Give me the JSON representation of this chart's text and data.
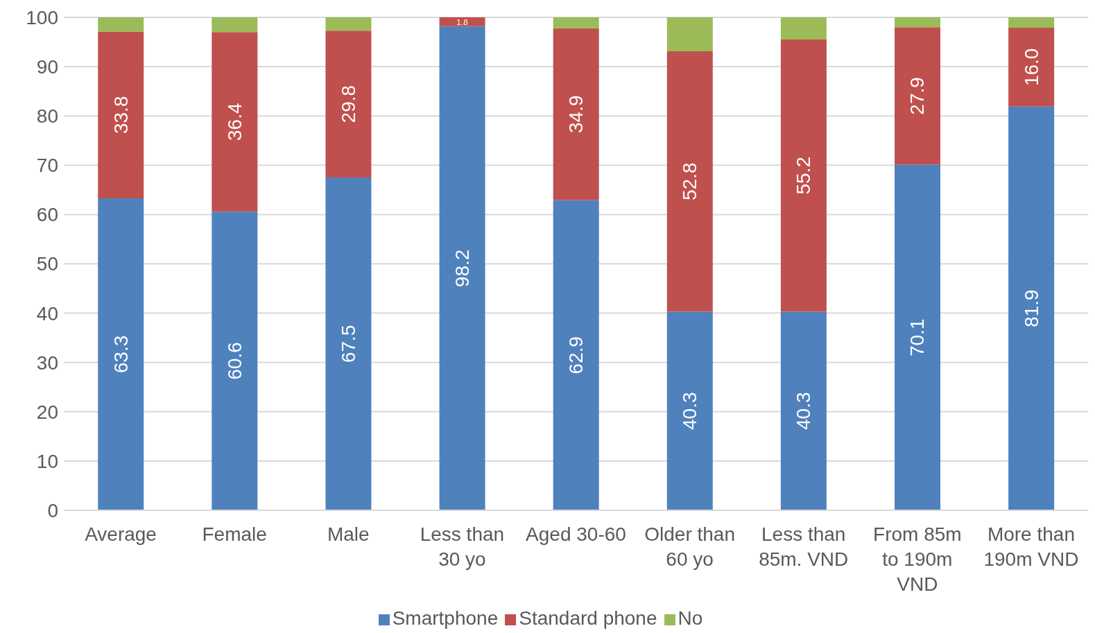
{
  "chart_data": {
    "type": "bar",
    "stacked": true,
    "categories": [
      "Average",
      "Female",
      "Male",
      "Less than 30 yo",
      "Aged 30-60",
      "Older than 60 yo",
      "Less than 85m. VND",
      "From 85m to 190m VND",
      "More than 190m VND"
    ],
    "series": [
      {
        "name": "Smartphone",
        "color": "#4f81bd",
        "values": [
          63.3,
          60.6,
          67.5,
          98.2,
          62.9,
          40.3,
          40.3,
          70.1,
          81.9
        ],
        "value_labels": [
          "63.3",
          "60.6",
          "67.5",
          "98.2",
          "62.9",
          "40.3",
          "40.3",
          "70.1",
          "81.9"
        ]
      },
      {
        "name": "Standard phone",
        "color": "#c0504d",
        "values": [
          33.8,
          36.4,
          29.8,
          1.8,
          34.9,
          52.8,
          55.2,
          27.9,
          16.0
        ],
        "value_labels": [
          "33.8",
          "36.4",
          "29.8",
          "1.8",
          "34.9",
          "52.8",
          "55.2",
          "27.9",
          "16.0"
        ]
      },
      {
        "name": "No",
        "color": "#9bbb59",
        "values": [
          2.9,
          3.0,
          2.7,
          0,
          2.2,
          6.9,
          4.5,
          2.0,
          2.1
        ]
      }
    ],
    "ylim": [
      0,
      100
    ],
    "yticks": [
      0,
      10,
      20,
      30,
      40,
      50,
      60,
      70,
      80,
      90,
      100
    ],
    "grid": "y",
    "legend": "bottom"
  }
}
